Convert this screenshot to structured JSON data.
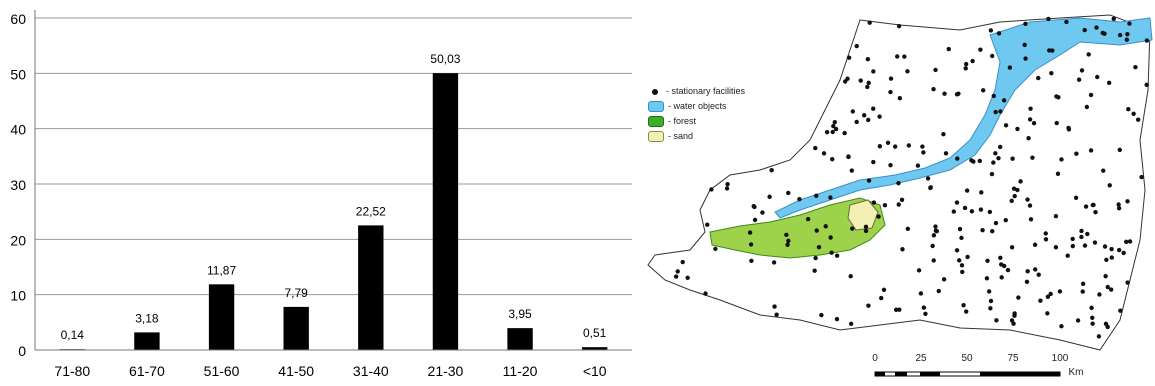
{
  "chart_data": {
    "type": "bar",
    "categories": [
      "71-80",
      "61-70",
      "51-60",
      "41-50",
      "31-40",
      "21-30",
      "11-20",
      "<10"
    ],
    "values": [
      0.14,
      3.18,
      11.87,
      7.79,
      22.52,
      50.03,
      3.95,
      0.51
    ],
    "data_labels": [
      "0,14",
      "3,18",
      "11,87",
      "7,79",
      "22,52",
      "50,03",
      "3,95",
      "0,51"
    ],
    "yticks": [
      "0",
      "10",
      "20",
      "30",
      "40",
      "50",
      "60"
    ],
    "ylim": [
      0,
      60
    ],
    "grid": true,
    "bar_color": "#000000",
    "title": "",
    "xlabel": "",
    "ylabel": ""
  },
  "map": {
    "legend": [
      {
        "icon": "black-dot",
        "label": "- stationary facilities"
      },
      {
        "icon": "water-swatch",
        "label": "- water objects"
      },
      {
        "icon": "forest-swatch",
        "label": "- forest"
      },
      {
        "icon": "sand-swatch",
        "label": "- sand"
      }
    ],
    "scale": {
      "labels": [
        "0",
        "25",
        "50",
        "75",
        "100"
      ],
      "unit": "Km"
    },
    "colors": {
      "water": "#6fc8f0",
      "forest": "#3fae2a",
      "sand": "#f3f0b4",
      "facility": "#111111"
    }
  }
}
